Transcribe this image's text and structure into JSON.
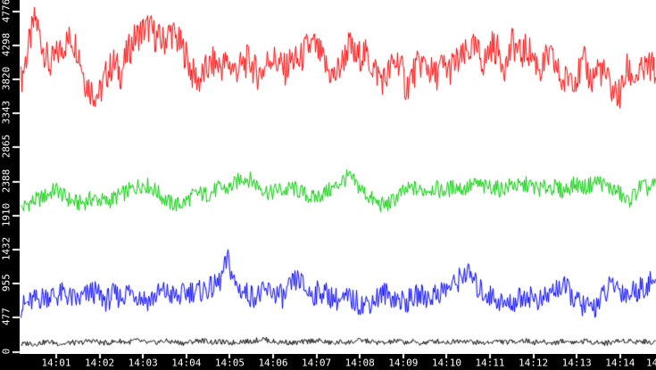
{
  "window": {
    "background": "#ffffff",
    "axis_background": "#000000",
    "axis_text_color": "#ffffff"
  },
  "chart_data": {
    "type": "line",
    "title": "",
    "grid": false,
    "legend": false,
    "x_axis": {
      "tick_labels": [
        "14:01",
        "14:02",
        "14:03",
        "14:04",
        "14:05",
        "14:06",
        "14:07",
        "14:08",
        "14:09",
        "14:10",
        "14:11",
        "14:12",
        "14:13",
        "14:14"
      ],
      "partial_end_label": "14"
    },
    "y_axis": {
      "ticks": [
        0,
        477,
        955,
        1432,
        1910,
        2388,
        2865,
        3343,
        3820,
        4298,
        4776
      ],
      "tick_labels": [
        "0",
        "477",
        "955",
        "1432",
        "1910",
        "2388",
        "2865",
        "3343",
        "3820",
        "4298",
        "4776"
      ],
      "range": [
        0,
        4900
      ]
    },
    "series": [
      {
        "name": "red",
        "color": "#ff0000",
        "noise_amplitude": 240,
        "values": [
          3800,
          4250,
          4680,
          4300,
          4000,
          4150,
          4300,
          4400,
          4250,
          3800,
          3650,
          3600,
          3900,
          4050,
          3900,
          4200,
          4400,
          4500,
          4550,
          4400,
          4350,
          4500,
          4350,
          4200,
          3900,
          3800,
          3950,
          4050,
          4000,
          4050,
          3950,
          4000,
          4100,
          3900,
          3950,
          4150,
          4050,
          3950,
          4100,
          4050,
          4250,
          4300,
          4150,
          3950,
          3850,
          4050,
          4300,
          4100,
          4200,
          4050,
          3900,
          3800,
          4000,
          4100,
          3700,
          3900,
          4050,
          4000,
          3850,
          4000,
          3950,
          4050,
          4100,
          4250,
          4200,
          4050,
          4300,
          4200,
          4000,
          4350,
          4150,
          4250,
          4100,
          3950,
          4150,
          4000,
          3750,
          3900,
          3850,
          4050,
          3800,
          4000,
          3850,
          3650,
          3600,
          3950,
          3850,
          3900,
          4000,
          3950
        ]
      },
      {
        "name": "green",
        "color": "#00cc00",
        "noise_amplitude": 120,
        "values": [
          2000,
          2080,
          2120,
          2160,
          2220,
          2280,
          2180,
          2120,
          2080,
          2100,
          2150,
          2130,
          2100,
          2150,
          2200,
          2250,
          2300,
          2350,
          2320,
          2250,
          2150,
          2080,
          2060,
          2100,
          2180,
          2220,
          2200,
          2250,
          2300,
          2280,
          2350,
          2450,
          2420,
          2350,
          2280,
          2220,
          2280,
          2250,
          2300,
          2250,
          2200,
          2150,
          2200,
          2250,
          2300,
          2400,
          2450,
          2350,
          2250,
          2150,
          2080,
          2050,
          2100,
          2200,
          2250,
          2300,
          2250,
          2280,
          2300,
          2250,
          2280,
          2320,
          2280,
          2320,
          2350,
          2300,
          2320,
          2280,
          2300,
          2350,
          2300,
          2350,
          2300,
          2280,
          2320,
          2300,
          2250,
          2320,
          2350,
          2300,
          2350,
          2400,
          2320,
          2280,
          2220,
          2100,
          2200,
          2330,
          2280,
          2350
        ]
      },
      {
        "name": "blue",
        "color": "#0000ff",
        "noise_amplitude": 170,
        "values": [
          620,
          680,
          720,
          760,
          800,
          780,
          820,
          750,
          720,
          780,
          850,
          780,
          720,
          800,
          760,
          850,
          820,
          760,
          720,
          800,
          840,
          800,
          760,
          820,
          860,
          840,
          880,
          900,
          1000,
          1300,
          950,
          850,
          800,
          780,
          820,
          860,
          800,
          760,
          950,
          1020,
          850,
          800,
          850,
          800,
          750,
          700,
          750,
          700,
          660,
          700,
          760,
          820,
          780,
          720,
          700,
          750,
          800,
          760,
          800,
          850,
          900,
          950,
          1100,
          1080,
          900,
          820,
          780,
          720,
          650,
          700,
          750,
          800,
          750,
          700,
          800,
          880,
          920,
          820,
          700,
          640,
          600,
          700,
          820,
          950,
          880,
          800,
          850,
          900,
          950,
          1000
        ]
      },
      {
        "name": "black",
        "color": "#000000",
        "noise_amplitude": 38,
        "values": [
          100,
          120,
          110,
          130,
          140,
          120,
          110,
          130,
          120,
          140,
          160,
          130,
          120,
          140,
          150,
          130,
          160,
          140,
          120,
          130,
          150,
          140,
          130,
          120,
          140,
          160,
          150,
          130,
          140,
          120,
          130,
          150,
          140,
          160,
          180,
          150,
          130,
          140,
          120,
          130,
          140,
          160,
          150,
          130,
          120,
          140,
          130,
          150,
          160,
          140,
          130,
          120,
          140,
          150,
          130,
          140,
          120,
          130,
          150,
          140,
          130,
          150,
          160,
          140,
          130,
          120,
          140,
          150,
          130,
          140,
          160,
          150,
          130,
          140,
          120,
          130,
          150,
          140,
          130,
          150,
          140,
          130,
          120,
          140,
          150,
          160,
          140,
          150,
          130,
          140
        ]
      }
    ]
  }
}
